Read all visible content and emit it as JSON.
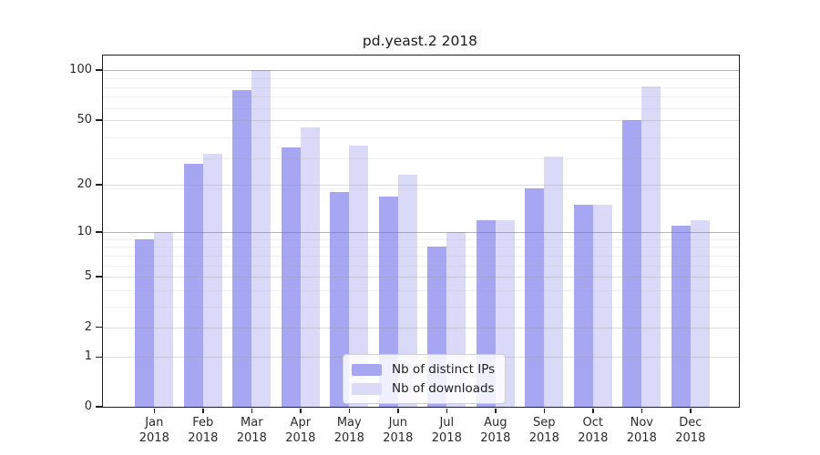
{
  "chart": {
    "title": "pd.yeast.2 2018"
  },
  "chart_data": {
    "type": "bar",
    "title": "pd.yeast.2 2018",
    "categories": [
      "Jan",
      "Feb",
      "Mar",
      "Apr",
      "May",
      "Jun",
      "Jul",
      "Aug",
      "Sep",
      "Oct",
      "Nov",
      "Dec"
    ],
    "x_tick_year": "2018",
    "series": [
      {
        "name": "Nb of distinct IPs",
        "color": "#a6a6f2",
        "values": [
          9,
          27,
          76,
          34,
          18,
          17,
          8,
          12,
          19,
          15,
          50,
          11
        ]
      },
      {
        "name": "Nb of downloads",
        "color": "#dadaf8",
        "values": [
          10,
          31,
          100,
          45,
          35,
          23,
          10,
          12,
          30,
          15,
          80,
          12
        ]
      }
    ],
    "yscale": "log10(1+x)",
    "y_ticks": [
      0,
      1,
      2,
      5,
      10,
      20,
      50,
      100
    ],
    "y_ticks_emphasized": [
      10,
      100
    ],
    "y_minor_gridlines": [
      3,
      4,
      6,
      7,
      8,
      9,
      19,
      29,
      39,
      59,
      69,
      79,
      89
    ],
    "ylim": [
      0,
      122
    ],
    "grid": true,
    "legend_position": "lower center"
  }
}
